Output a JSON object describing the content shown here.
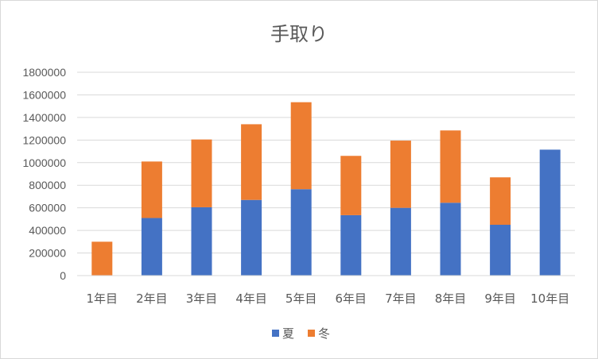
{
  "chart_data": {
    "type": "bar",
    "stacked": true,
    "title": "手取り",
    "xlabel": "",
    "ylabel": "",
    "categories": [
      "1年目",
      "2年目",
      "3年目",
      "4年目",
      "5年目",
      "6年目",
      "7年目",
      "8年目",
      "9年目",
      "10年目"
    ],
    "series": [
      {
        "name": "夏",
        "color": "#4472c4",
        "values": [
          0,
          510000,
          605000,
          670000,
          765000,
          535000,
          600000,
          645000,
          450000,
          1115000
        ]
      },
      {
        "name": "冬",
        "color": "#ed7d31",
        "values": [
          300000,
          500000,
          600000,
          670000,
          770000,
          525000,
          595000,
          640000,
          420000,
          0
        ]
      }
    ],
    "ylim": [
      0,
      1800000
    ],
    "yticks": [
      "0",
      "200000",
      "400000",
      "600000",
      "800000",
      "1000000",
      "1200000",
      "1400000",
      "1600000",
      "1800000"
    ],
    "grid": true,
    "legend": "bottom"
  }
}
